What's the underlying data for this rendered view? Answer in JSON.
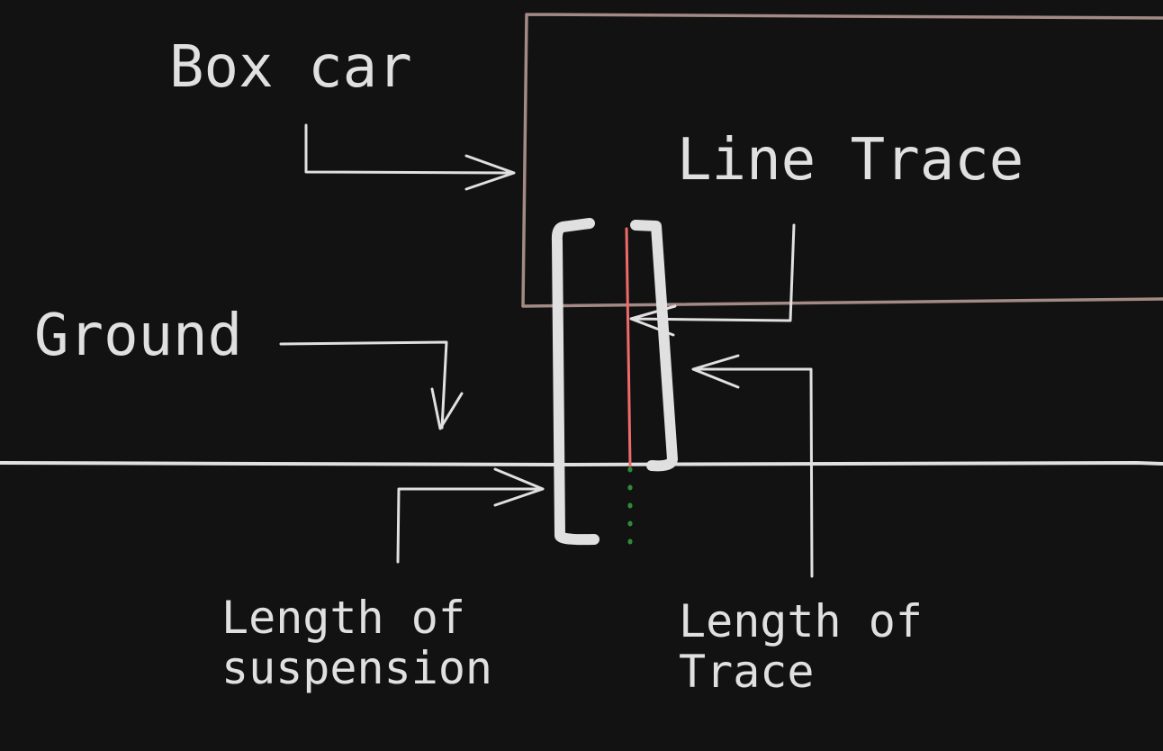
{
  "labels": {
    "box_car": "Box car",
    "line_trace": "Line Trace",
    "ground": "Ground",
    "suspension_length": "Length of\nsuspension",
    "trace_length": "Length of\nTrace"
  },
  "colors": {
    "background": "#121212",
    "ink": "#e0e0e0",
    "box_outline": "#a38a84",
    "trace_line": "#f06a6a",
    "trace_extension": "#2e8b3a"
  }
}
